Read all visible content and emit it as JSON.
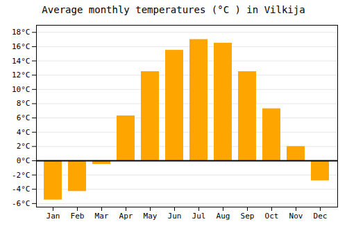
{
  "chart_data": {
    "type": "bar",
    "title": "Average monthly temperatures (°C ) in Vilkija",
    "categories": [
      "Jan",
      "Feb",
      "Mar",
      "Apr",
      "May",
      "Jun",
      "Jul",
      "Aug",
      "Sep",
      "Oct",
      "Nov",
      "Dec"
    ],
    "values": [
      -5.5,
      -4.3,
      -0.5,
      6.3,
      12.5,
      15.5,
      17.0,
      16.5,
      12.5,
      7.3,
      2.0,
      -2.8
    ],
    "color": "#FFA500",
    "ylim": [
      -6.5,
      19
    ],
    "yticks": [
      {
        "value": -6,
        "label": "-6°C"
      },
      {
        "value": -4,
        "label": "-4°C"
      },
      {
        "value": -2,
        "label": "-2°C"
      },
      {
        "value": 0,
        "label": "0°C"
      },
      {
        "value": 2,
        "label": "2°C"
      },
      {
        "value": 4,
        "label": "4°C"
      },
      {
        "value": 6,
        "label": "6°C"
      },
      {
        "value": 8,
        "label": "8°C"
      },
      {
        "value": 10,
        "label": "10°C"
      },
      {
        "value": 12,
        "label": "12°C"
      },
      {
        "value": 14,
        "label": "14°C"
      },
      {
        "value": 16,
        "label": "16°C"
      },
      {
        "value": 18,
        "label": "18°C"
      }
    ],
    "grid": true
  }
}
